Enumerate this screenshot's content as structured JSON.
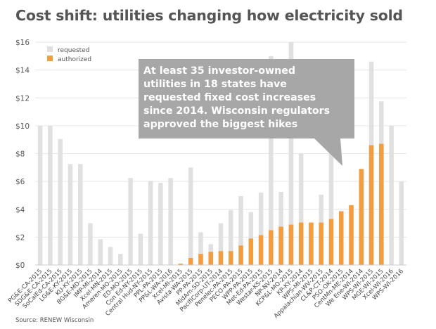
{
  "chart_data": {
    "type": "bar",
    "title": "Cost shift: utilities changing how electricity sold",
    "source": "Source: RENEW Wisconsin",
    "ylim": [
      0,
      16
    ],
    "yticks": [
      "$0",
      "$2",
      "$4",
      "$6",
      "$8",
      "$10",
      "$12",
      "$14",
      "$16"
    ],
    "grid": true,
    "legend_placement": "top-left",
    "colors": {
      "requested": "#e0e0e0",
      "authorized": "#f29d3f",
      "callout": "#a7a7a7"
    },
    "categories": [
      "PG&E-CA-2015",
      "SDG&E-CA-2015",
      "SoCalEd-CA-2015",
      "LG&E-KY-2015",
      "KU-KY-2015",
      "BG&E-MD-2015",
      "IMP-MI-2014",
      "Xcel-MN-2015",
      "Ameren-MO-2015",
      "ED-MO-2015",
      "Con Ed-NY-2015",
      "Central Hud-NY-2015",
      "PPL-PA-2015",
      "PP&L-WA-2016",
      "Xcel-MI-2015",
      "Avista-WA-2015",
      "PP-PA-2015",
      "MidAm-SD-2015",
      "PacifiCorp-UT-2014",
      "Penelec-PA-2015",
      "PECO-PA-2015",
      "WPP-PA-2015",
      "Met-Ed-PA-2015",
      "Westar-KS-2015",
      "NP-NV-2014",
      "KCP&L-MO-2015",
      "KP-KY-2014",
      "WPS-MI-2015",
      "Appalachian-WV-2015",
      "CL&P-CT-2014",
      "PSO-OK-2015",
      "CentMn-ME-2014",
      "We Ene-WI-2014",
      "WPS-WI-2015",
      "MGE-WI-2015",
      "Xcel-WI-2016",
      "WPS-WI-2016"
    ],
    "series": [
      {
        "name": "requested",
        "values": [
          10,
          10,
          9.05,
          7.25,
          7.25,
          3,
          1.85,
          1.3,
          0.8,
          6.25,
          2.25,
          6.05,
          5.9,
          6.25,
          0.1,
          7,
          2.35,
          1.5,
          3,
          3.95,
          4.95,
          3.8,
          5.2,
          15,
          5.25,
          16,
          8,
          3,
          5.05,
          9.5,
          3.9,
          4.3,
          6.85,
          14.6,
          11.75,
          10,
          6
        ]
      },
      {
        "name": "authorized",
        "values": [
          0,
          0,
          0,
          0,
          0,
          0,
          0,
          0,
          0,
          0,
          0,
          0,
          0,
          0,
          0.1,
          0.5,
          0.8,
          0.95,
          1,
          1,
          1.4,
          1.9,
          2.15,
          2.5,
          2.75,
          2.9,
          3.05,
          3.05,
          3.05,
          3.3,
          3.85,
          4.3,
          6.9,
          8.6,
          8.7,
          0,
          0
        ]
      }
    ],
    "annotation": "At least 35 investor-owned utilities in 18 states have requested fixed cost increases since 2014. Wisconsin regulators approved the biggest hikes",
    "annotation_lines": [
      "At least 35 investor-owned",
      "utilities in 18 states have",
      "requested fixed cost increases",
      "since 2014. Wisconsin regulators",
      "approved the biggest hikes"
    ]
  }
}
